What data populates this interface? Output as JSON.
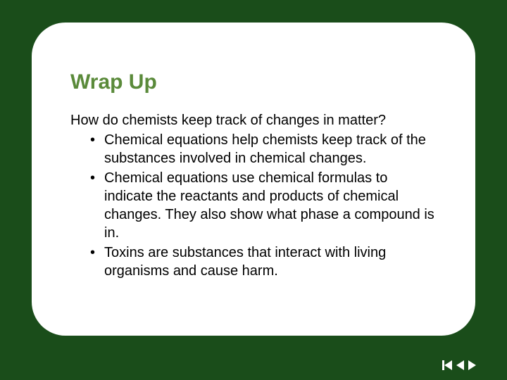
{
  "slide": {
    "background_color": "#1a4d1a",
    "card_background": "#ffffff",
    "card_border_radius": 48,
    "title": "Wrap Up",
    "title_color": "#5a8a3a",
    "title_fontsize": 30,
    "question": "How do chemists keep track of changes in matter?",
    "body_color": "#000000",
    "body_fontsize": 20,
    "bullets": [
      "Chemical equations help chemists keep track of the substances involved in chemical changes.",
      "Chemical equations use chemical formulas to indicate the reactants and products of chemical changes. They also show what phase a compound is in.",
      "Toxins are substances that interact with living organisms and cause harm."
    ]
  },
  "nav": {
    "icon_color": "#ffffff"
  }
}
